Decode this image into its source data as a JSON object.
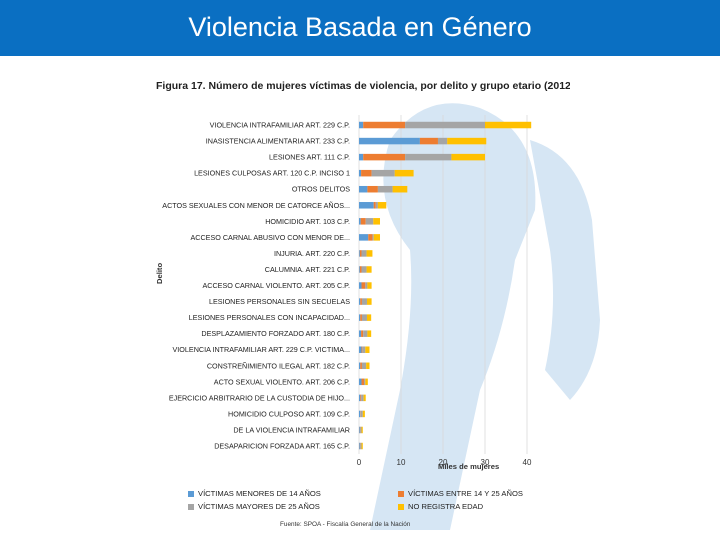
{
  "slide": {
    "title": "Violencia Basada en Género"
  },
  "colors": {
    "header": "#0a6fc2",
    "series": [
      "#5b9bd5",
      "#ed7d31",
      "#a5a5a5",
      "#ffc000"
    ],
    "gridline": "#d9d9d9",
    "silhouette": "#d6e6f4"
  },
  "chart_data": {
    "type": "bar",
    "orientation": "horizontal",
    "stacked": true,
    "title": "Figura 17. Número de mujeres víctimas de violencia,  por delito y grupo etario (2012)",
    "xlabel": "Miles de mujeres",
    "ylabel": "Delito",
    "xlim": [
      0,
      40
    ],
    "xticks": [
      "0",
      "10",
      "20",
      "30",
      "40"
    ],
    "grid": true,
    "legend_position": "bottom",
    "source": "Fuente: SPOA - Fiscalía General de la Nación",
    "categories": [
      "VIOLENCIA INTRAFAMILIAR ART. 229 C.P.",
      "INASISTENCIA ALIMENTARIA ART. 233 C.P.",
      "LESIONES ART. 111 C.P.",
      "LESIONES CULPOSAS ART. 120 C.P. INCISO 1",
      "OTROS DELITOS",
      "ACTOS SEXUALES CON MENOR DE CATORCE AÑOS...",
      "HOMICIDIO ART. 103 C.P.",
      "ACCESO CARNAL ABUSIVO CON MENOR DE...",
      "INJURIA. ART. 220 C.P.",
      "CALUMNIA. ART. 221 C.P.",
      "ACCESO CARNAL VIOLENTO. ART. 205 C.P.",
      "LESIONES PERSONALES SIN SECUELAS",
      "LESIONES PERSONALES CON INCAPACIDAD...",
      "DESPLAZAMIENTO FORZADO ART. 180 C.P.",
      "VIOLENCIA INTRAFAMILIAR ART. 229 C.P. VICTIMA...",
      "CONSTREÑIMIENTO ILEGAL ART. 182 C.P.",
      "ACTO SEXUAL VIOLENTO. ART. 206 C.P.",
      "EJERCICIO ARBITRARIO DE LA CUSTODIA DE HIJO...",
      "HOMICIDIO CULPOSO ART. 109 C.P.",
      "DE LA VIOLENCIA INTRAFAMILIAR",
      "DESAPARICION FORZADA ART. 165 C.P."
    ],
    "series": [
      {
        "name": "VÍCTIMAS MENORES DE 14 AÑOS",
        "values": [
          1.0,
          14.5,
          1.0,
          0.5,
          2.0,
          3.5,
          0.4,
          2.2,
          0.2,
          0.2,
          0.6,
          0.3,
          0.3,
          0.5,
          0.6,
          0.3,
          0.6,
          0.3,
          0.3,
          0.2,
          0.2
        ]
      },
      {
        "name": "VÍCTIMAS ENTRE 14 Y 25 AÑOS",
        "values": [
          10.0,
          4.3,
          10.0,
          2.5,
          2.5,
          0.5,
          1.2,
          1.0,
          0.4,
          0.4,
          0.9,
          0.4,
          0.4,
          0.5,
          0.2,
          0.4,
          0.6,
          0.2,
          0.1,
          0.1,
          0.1
        ]
      },
      {
        "name": "VÍCTIMAS MAYORES DE 25 AÑOS",
        "values": [
          19.0,
          2.2,
          11.0,
          5.5,
          3.5,
          0.5,
          1.8,
          0.3,
          1.2,
          1.2,
          0.5,
          1.2,
          1.2,
          1.0,
          0.7,
          1.0,
          0.3,
          0.6,
          0.5,
          0.3,
          0.3
        ]
      },
      {
        "name": "NO REGISTRA EDAD",
        "values": [
          11.0,
          9.3,
          8.0,
          4.5,
          3.5,
          2.0,
          1.6,
          1.5,
          1.4,
          1.2,
          1.0,
          1.1,
          1.0,
          0.9,
          1.0,
          0.8,
          0.6,
          0.5,
          0.5,
          0.3,
          0.3
        ]
      }
    ]
  }
}
